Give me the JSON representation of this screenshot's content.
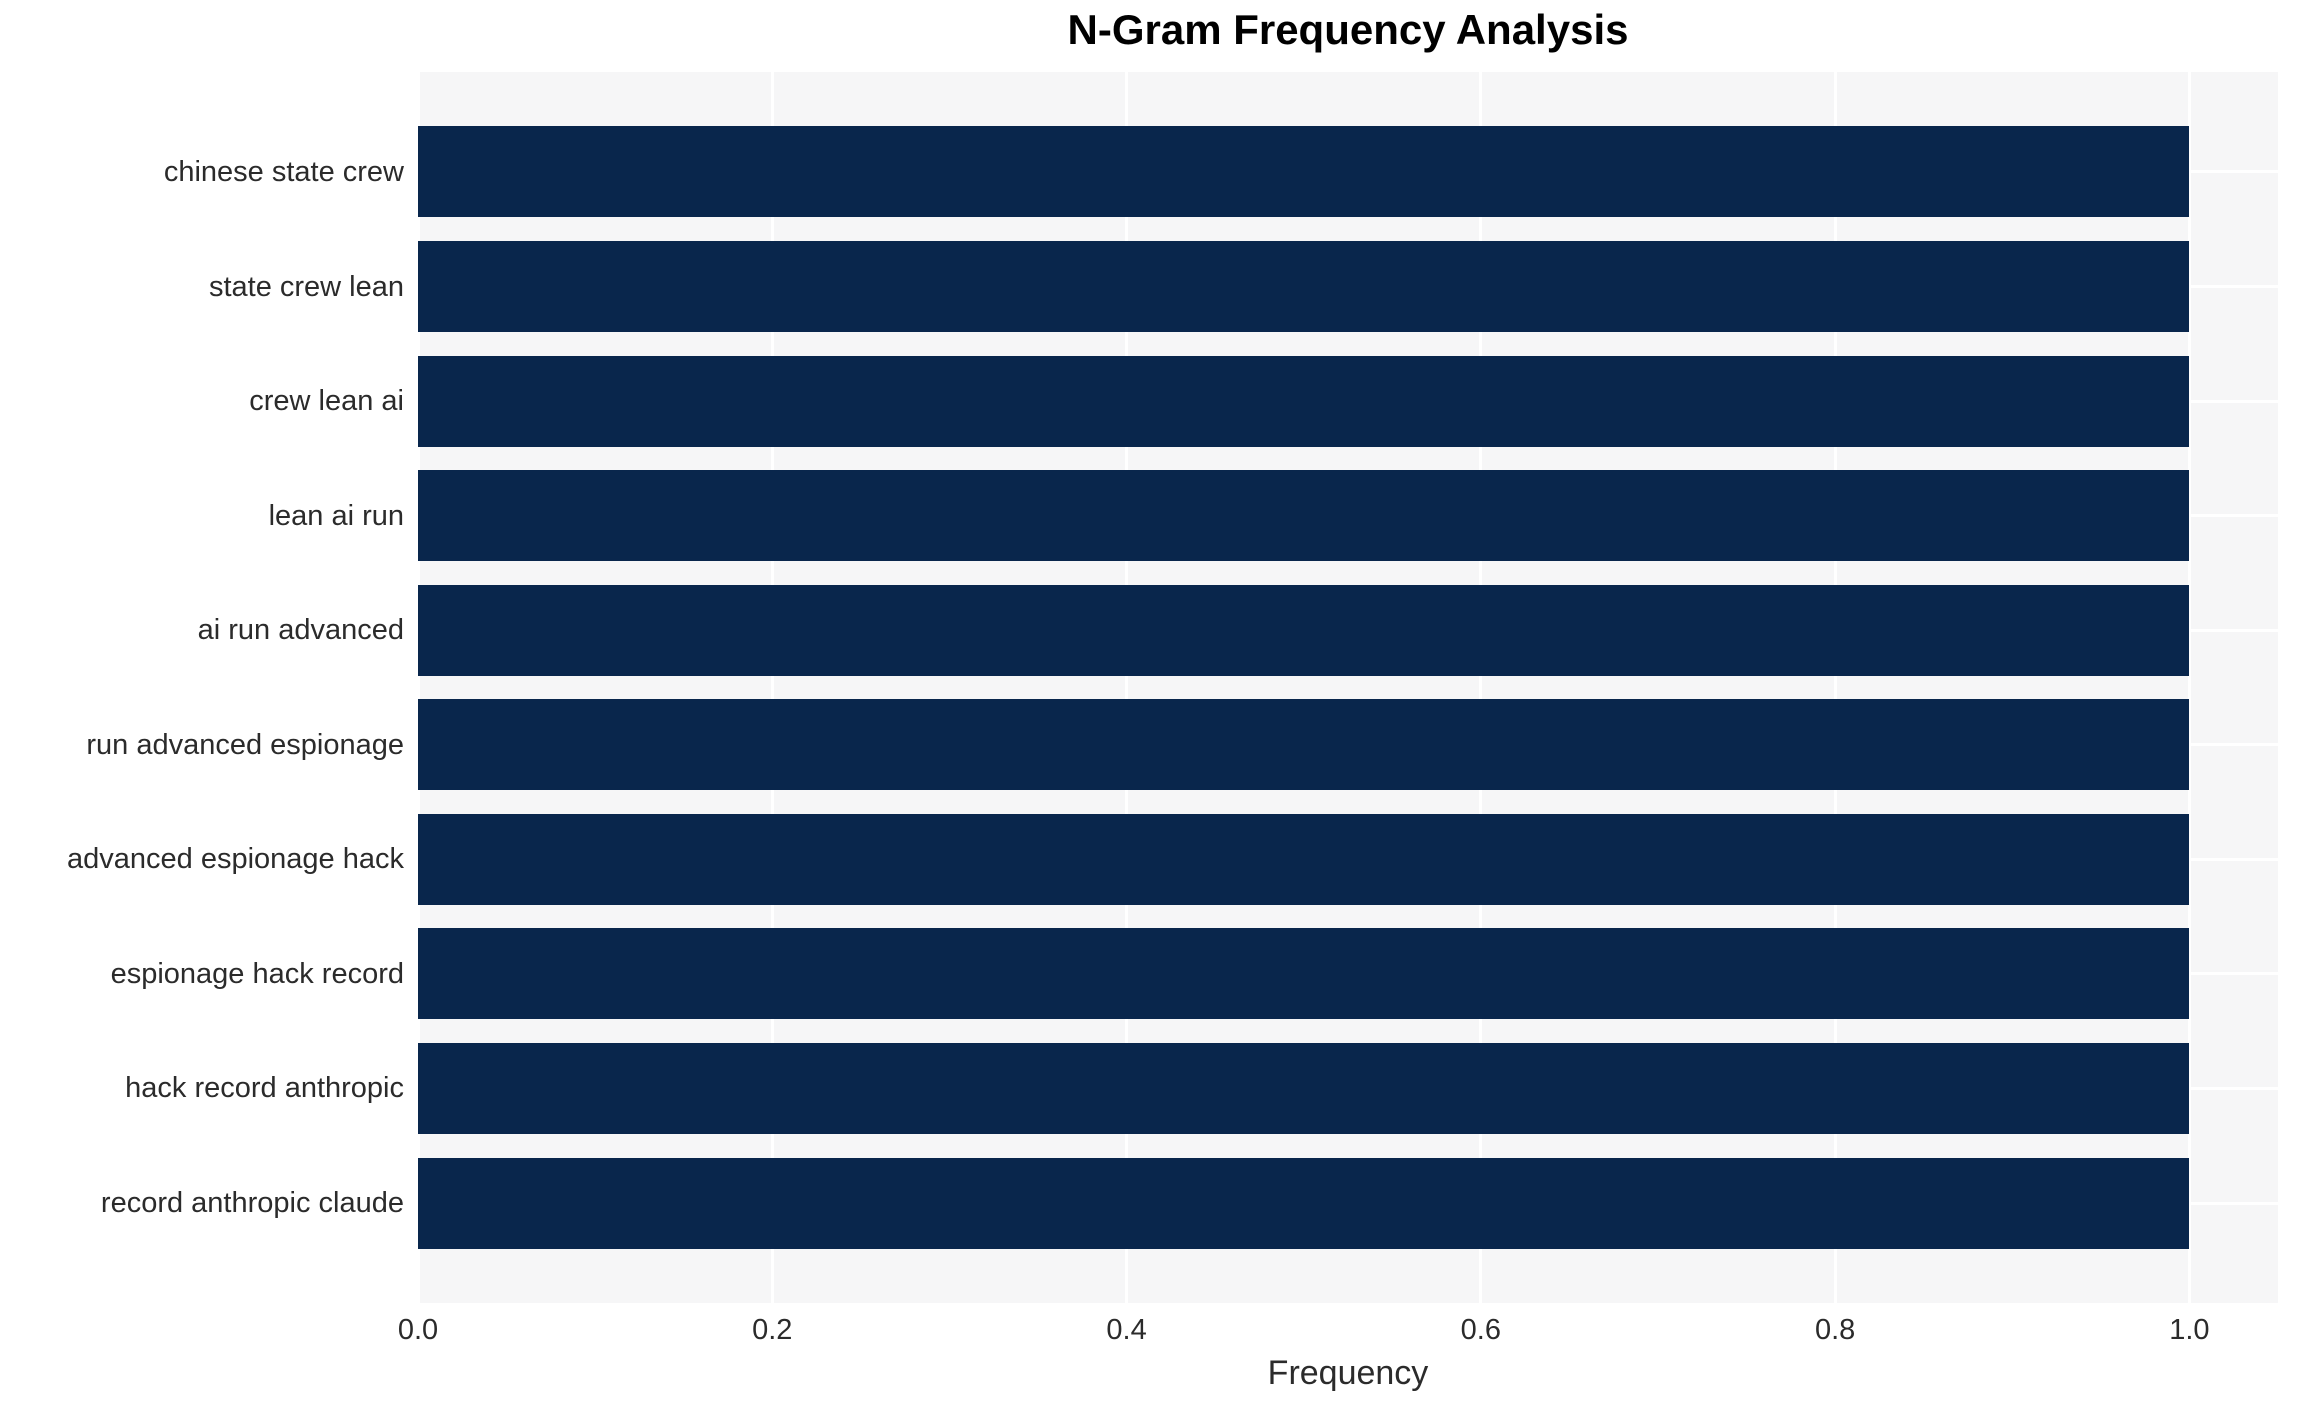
{
  "chart_data": {
    "type": "bar",
    "orientation": "horizontal",
    "title": "N-Gram Frequency Analysis",
    "xlabel": "Frequency",
    "categories": [
      "chinese state crew",
      "state crew lean",
      "crew lean ai",
      "lean ai run",
      "ai run advanced",
      "run advanced espionage",
      "advanced espionage hack",
      "espionage hack record",
      "hack record anthropic",
      "record anthropic claude"
    ],
    "values": [
      1.0,
      1.0,
      1.0,
      1.0,
      1.0,
      1.0,
      1.0,
      1.0,
      1.0,
      1.0
    ],
    "xticks": [
      {
        "label": "0.0",
        "value": 0.0
      },
      {
        "label": "0.2",
        "value": 0.2
      },
      {
        "label": "0.4",
        "value": 0.4
      },
      {
        "label": "0.6",
        "value": 0.6
      },
      {
        "label": "0.8",
        "value": 0.8
      },
      {
        "label": "1.0",
        "value": 1.0
      }
    ],
    "xlim": [
      0,
      1.05
    ],
    "grid": true,
    "legend": false,
    "colors": {
      "bar": "#09264c",
      "plot_background": "#f6f6f7",
      "gridline": "#ffffff",
      "tick_text": "#2b2b2b",
      "title_text": "#000000"
    }
  }
}
